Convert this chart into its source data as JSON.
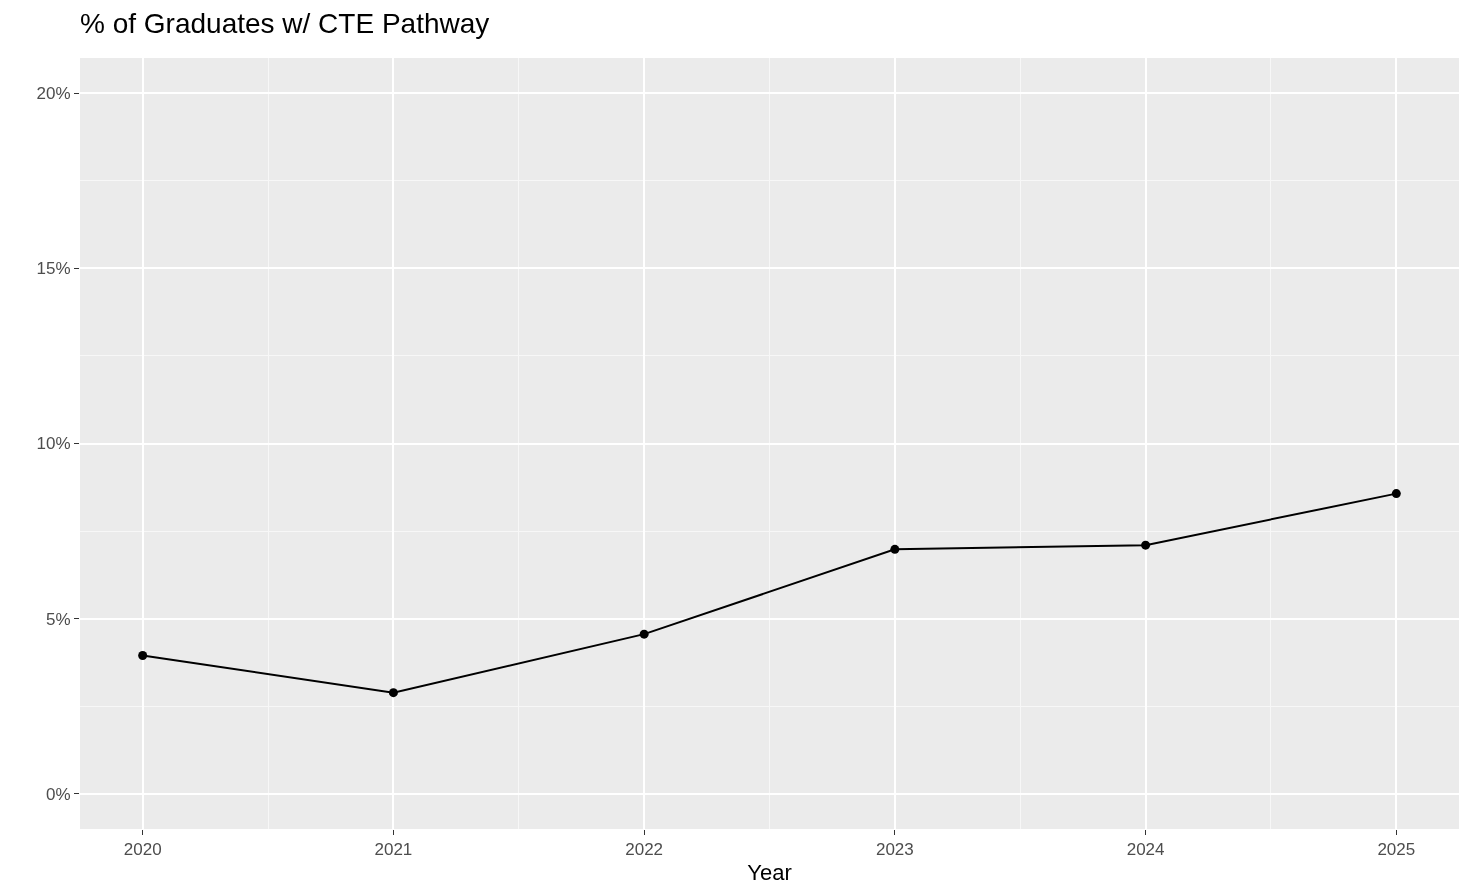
{
  "chart_data": {
    "type": "line",
    "title": "% of Graduates w/ CTE Pathway",
    "xlabel": "Year",
    "x": [
      2020,
      2021,
      2022,
      2023,
      2024,
      2025
    ],
    "series": [
      {
        "color": "#000000",
        "values": [
          3.95,
          2.89,
          4.56,
          6.98,
          7.1,
          8.57
        ]
      }
    ],
    "xlim": [
      2019.75,
      2025.25
    ],
    "xticks": [
      2020,
      2021,
      2022,
      2023,
      2024,
      2025
    ],
    "ylim": [
      -1,
      21
    ],
    "yticks": [
      {
        "value": 0,
        "label": "0%"
      },
      {
        "value": 5,
        "label": "5%"
      },
      {
        "value": 10,
        "label": "10%"
      },
      {
        "value": 15,
        "label": "15%"
      },
      {
        "value": 20,
        "label": "20%"
      }
    ],
    "grid": true,
    "marker": "circle",
    "line_style": "solid"
  }
}
